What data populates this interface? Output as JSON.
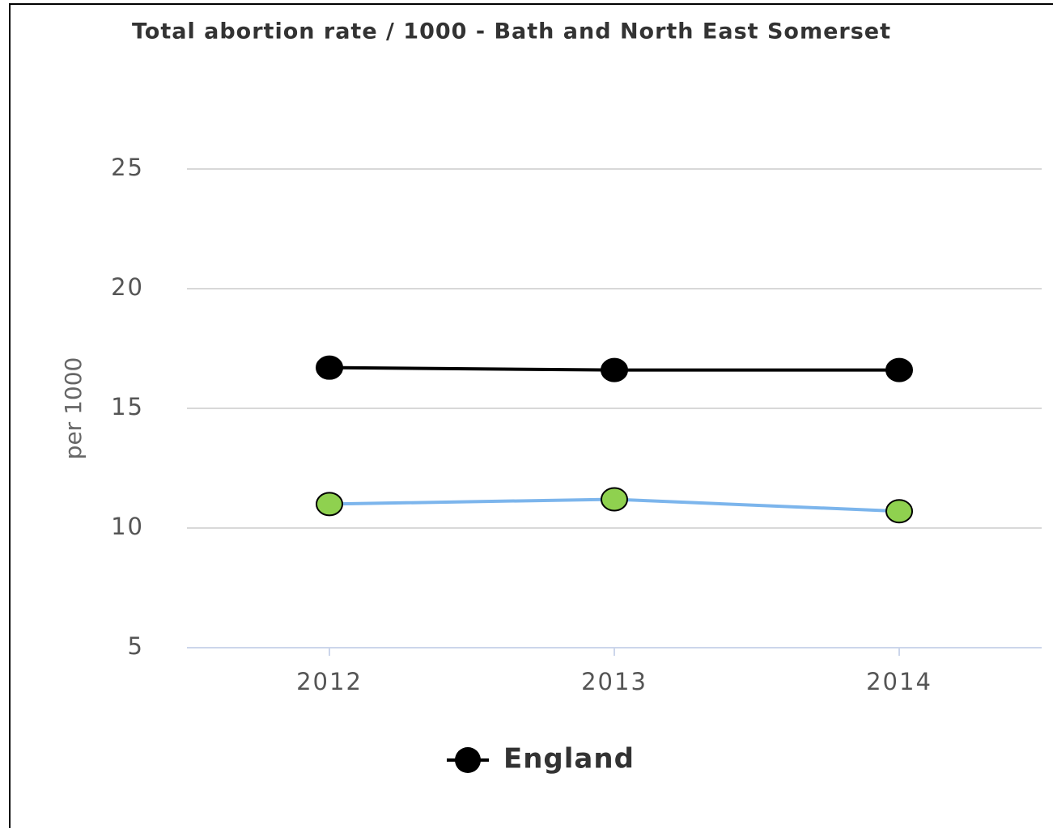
{
  "chart_data": {
    "type": "line",
    "title": "Total abortion rate / 1000 - Bath and North East Somerset",
    "y_label": "per 1000",
    "categories": [
      "2012",
      "2013",
      "2014"
    ],
    "series": [
      {
        "name": "England",
        "color": "#000000",
        "marker_color": "#000000",
        "values": [
          16.7,
          16.6,
          16.6
        ]
      },
      {
        "color": "#7cb5ec",
        "marker_color": "#8fd14f",
        "values": [
          11.0,
          11.2,
          10.7
        ]
      }
    ],
    "ylim": [
      5,
      25
    ],
    "yticks": [
      5,
      10,
      15,
      20,
      25
    ],
    "grid": true
  }
}
